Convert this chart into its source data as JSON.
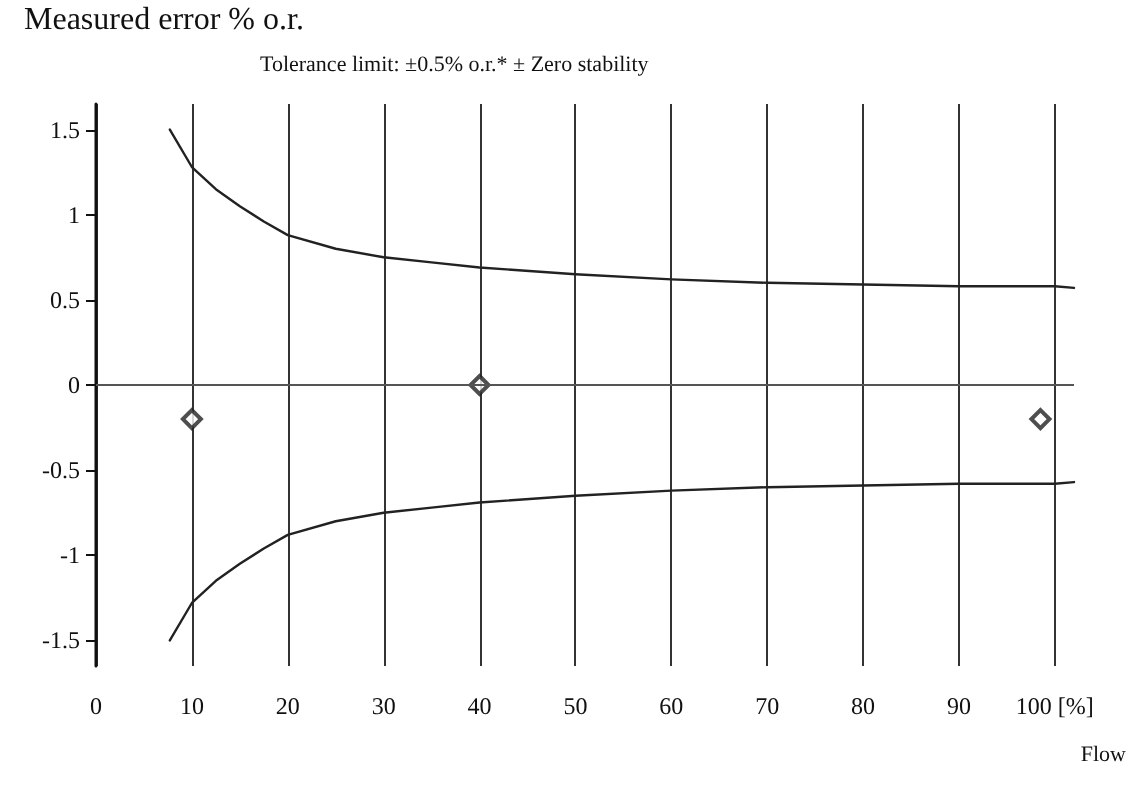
{
  "chart_data": {
    "type": "line",
    "title": "Tolerance limit: ±0.5% o.r.* ± Zero stability",
    "ylabel": "Measured error % o.r.",
    "xlabel": "Flow",
    "xlim": [
      0,
      102
    ],
    "xticks": [
      0,
      10,
      20,
      30,
      40,
      50,
      60,
      70,
      80,
      90,
      {
        "value": 100,
        "label": "100 [%]"
      }
    ],
    "ylim": [
      -1.65,
      1.65
    ],
    "yticks": [
      -1.5,
      -1,
      -0.5,
      0,
      0.5,
      1,
      1.5
    ],
    "grid": "x",
    "ref_lines": [
      {
        "axis": "y",
        "value": 0,
        "color": "#555555"
      }
    ],
    "series": [
      {
        "color": "#222222",
        "marker": "none",
        "x": [
          7.7,
          10,
          12.5,
          15,
          17.5,
          20,
          25,
          30,
          35,
          40,
          50,
          60,
          70,
          80,
          90,
          100,
          102
        ],
        "values": [
          1.5,
          1.28,
          1.15,
          1.05,
          0.96,
          0.88,
          0.8,
          0.75,
          0.72,
          0.69,
          0.65,
          0.62,
          0.6,
          0.59,
          0.58,
          0.58,
          0.57
        ]
      },
      {
        "color": "#222222",
        "marker": "none",
        "x": [
          7.7,
          10,
          12.5,
          15,
          17.5,
          20,
          25,
          30,
          35,
          40,
          50,
          60,
          70,
          80,
          90,
          100,
          102
        ],
        "values": [
          -1.5,
          -1.28,
          -1.15,
          -1.05,
          -0.96,
          -0.88,
          -0.8,
          -0.75,
          -0.72,
          -0.69,
          -0.65,
          -0.62,
          -0.6,
          -0.59,
          -0.58,
          -0.58,
          -0.57
        ]
      },
      {
        "type": "scatter",
        "color": "#222222",
        "marker": "diamond",
        "x": [
          10,
          40,
          98.5
        ],
        "values": [
          -0.2,
          0,
          -0.2
        ]
      }
    ]
  }
}
